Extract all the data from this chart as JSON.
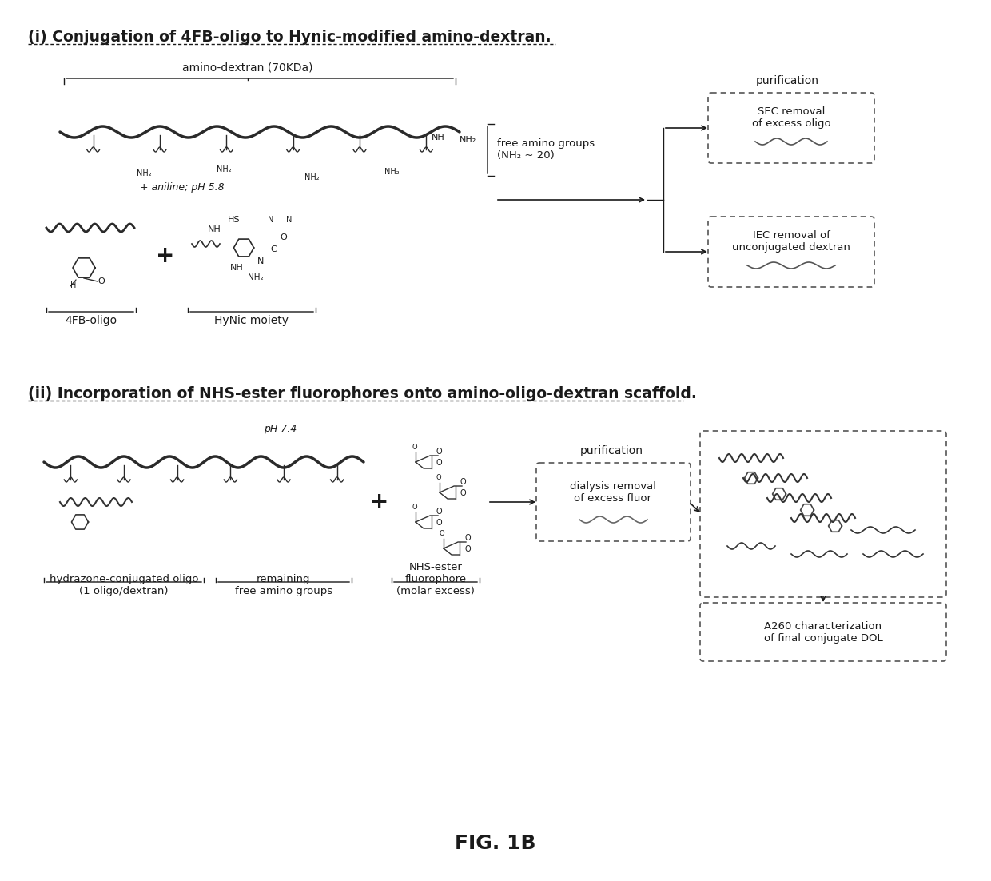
{
  "background_color": "#ffffff",
  "fig_label": "FIG. 1B",
  "section1_title": "(i) Conjugation of 4FB-oligo to Hynic-modified amino-dextran.",
  "section2_title": "(ii) Incorporation of NHS-ester fluorophores onto amino-oligo-dextran scaffold.",
  "section1_labels": {
    "amino_dextran": "amino-dextran (70KDa)",
    "plus": "+",
    "aniline": "+ aniline; pH 5.8",
    "free_amino": "free amino groups\n(NH₂ ~ 20)",
    "label1": "4FB-oligo",
    "label2": "HyNic moiety",
    "purification": "purification",
    "sec_box": "SEC removal\nof excess oligo",
    "iec_box": "IEC removal of\nunconjugated dextran"
  },
  "section2_labels": {
    "pH": "pH 7.4",
    "plus": "+",
    "purification": "purification",
    "dialysis_box": "dialysis removal\nof excess fluor",
    "label1": "hydrazone-conjugated oligo\n(1 oligo/dextran)",
    "label2": "remaining\nfree amino groups",
    "label3": "NHS-ester\nfluorophore\n(molar excess)",
    "a260_box": "A260 characterization\nof final conjugate DOL"
  },
  "box_edge_color": "#555555",
  "text_color": "#1a1a1a",
  "dashed_style": [
    4,
    3
  ]
}
